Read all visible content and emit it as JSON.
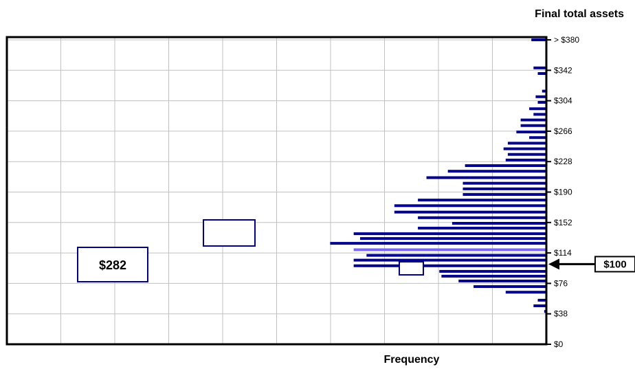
{
  "chart_data": {
    "type": "bar",
    "orientation": "horizontal",
    "title": "Final total assets",
    "xlabel": "Frequency",
    "ylabel": "",
    "ylim": [
      0,
      400
    ],
    "y_tick_labels": [
      "$0",
      "$38",
      "$76",
      "$114",
      "$152",
      "$190",
      "$228",
      "$266",
      "$304",
      "$342",
      "> $380"
    ],
    "y_tick_values": [
      0,
      38,
      76,
      114,
      152,
      190,
      228,
      266,
      304,
      342,
      380
    ],
    "grid": true,
    "bar_color": "#00008b",
    "highlight_color": "#7b68ee",
    "highlight_value": 118,
    "bin_centers": [
      380,
      345,
      338,
      316,
      309,
      302,
      294,
      287,
      280,
      273,
      265,
      258,
      251,
      244,
      237,
      230,
      223,
      216,
      208,
      201,
      194,
      187,
      180,
      173,
      165,
      158,
      151,
      145,
      138,
      132,
      126,
      118,
      111,
      105,
      98,
      91,
      85,
      79,
      72,
      65,
      55,
      48,
      41
    ],
    "frequencies": [
      0.7,
      0.6,
      0.4,
      0.2,
      0.5,
      0.4,
      0.8,
      0.6,
      1.2,
      1.2,
      1.4,
      0.8,
      1.8,
      2.0,
      1.8,
      1.9,
      3.8,
      4.6,
      5.6,
      3.9,
      3.9,
      3.9,
      6.0,
      7.1,
      7.1,
      6.0,
      4.4,
      6.0,
      9.0,
      8.7,
      10.1,
      9.0,
      8.4,
      9.0,
      9.0,
      5.0,
      4.9,
      4.1,
      3.4,
      1.9,
      0.4,
      0.6,
      0.1
    ],
    "frequency_max": 25.2
  },
  "annotations": {
    "pointer_label": "$100",
    "pointer_value": 100,
    "box_label": "$282"
  },
  "colors": {
    "axis": "#000000",
    "grid": "#c0c0c0",
    "box_border": "#00008b"
  }
}
